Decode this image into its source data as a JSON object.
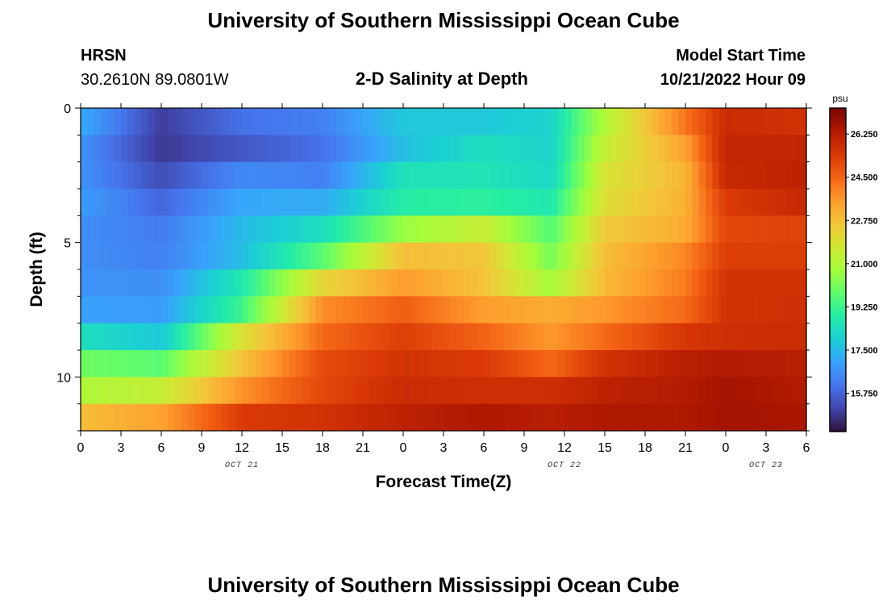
{
  "header": {
    "title": "University of Southern Mississippi Ocean Cube",
    "station_code": "HRSN",
    "location": "30.2610N  89.0801W",
    "subtitle": "2-D Salinity at Depth",
    "model_start_label": "Model Start Time",
    "model_start_value": "10/21/2022 Hour 09"
  },
  "footer": {
    "title": "University of Southern Mississippi Ocean Cube"
  },
  "chart_data": {
    "type": "heatmap",
    "title": "2-D Salinity at Depth",
    "xlabel": "Forecast Time(Z)",
    "ylabel": "Depth (ft)",
    "x_ticks": [
      "0",
      "3",
      "6",
      "9",
      "12",
      "15",
      "18",
      "21",
      "0",
      "3",
      "6",
      "9",
      "12",
      "15",
      "18",
      "21",
      "0",
      "3",
      "6"
    ],
    "x_hours": [
      0,
      3,
      6,
      9,
      12,
      15,
      18,
      21,
      24,
      27,
      30,
      33,
      36,
      39,
      42,
      45,
      48,
      51,
      54
    ],
    "xlim": [
      0,
      54
    ],
    "date_labels": [
      {
        "text": "OCT 21",
        "hour": 12
      },
      {
        "text": "OCT 22",
        "hour": 36
      },
      {
        "text": "OCT 23",
        "hour": 51
      }
    ],
    "y_ticks": [
      "0",
      "5",
      "10"
    ],
    "y_tick_values": [
      0,
      5,
      10
    ],
    "ylim": [
      0,
      12
    ],
    "depth_levels": [
      0.5,
      1.5,
      2.5,
      3.5,
      4.5,
      5.5,
      6.5,
      7.5,
      8.5,
      9.5,
      10.5,
      11.5
    ],
    "time_keys_hours": [
      0,
      6,
      12,
      18,
      24,
      30,
      35,
      39,
      45,
      48,
      54
    ],
    "salinity": [
      [
        17.2,
        15.0,
        16.0,
        16.3,
        17.8,
        17.8,
        18.1,
        21.0,
        24.2,
        25.8,
        25.6
      ],
      [
        16.7,
        14.9,
        15.5,
        16.0,
        17.6,
        18.4,
        18.1,
        21.4,
        23.4,
        26.0,
        26.0
      ],
      [
        16.7,
        15.3,
        16.5,
        16.3,
        18.5,
        18.6,
        18.2,
        21.8,
        23.0,
        25.9,
        26.1
      ],
      [
        16.9,
        15.8,
        17.1,
        17.2,
        18.9,
        19.0,
        18.7,
        22.0,
        23.1,
        25.4,
        25.9
      ],
      [
        16.6,
        16.2,
        17.5,
        18.4,
        20.6,
        21.5,
        19.6,
        22.5,
        23.2,
        25.1,
        25.2
      ],
      [
        16.6,
        16.3,
        17.6,
        19.7,
        22.8,
        22.6,
        20.1,
        22.8,
        23.9,
        25.3,
        25.3
      ],
      [
        16.7,
        16.6,
        18.7,
        22.2,
        23.5,
        22.7,
        20.8,
        22.9,
        24.1,
        25.6,
        25.6
      ],
      [
        17.0,
        16.9,
        19.3,
        23.8,
        24.6,
        23.5,
        23.2,
        23.6,
        24.4,
        25.6,
        25.7
      ],
      [
        18.4,
        17.8,
        21.9,
        24.4,
        25.3,
        24.5,
        23.6,
        24.4,
        25.5,
        25.7,
        25.8
      ],
      [
        20.0,
        19.7,
        22.7,
        25.0,
        25.6,
        25.4,
        24.4,
        25.6,
        26.2,
        26.3,
        26.2
      ],
      [
        21.0,
        21.4,
        23.7,
        25.1,
        25.8,
        25.7,
        25.7,
        26.1,
        26.3,
        26.6,
        26.3
      ],
      [
        22.8,
        23.4,
        25.4,
        25.6,
        26.1,
        26.4,
        26.2,
        26.4,
        26.4,
        26.6,
        26.5
      ]
    ],
    "colorbar": {
      "unit": "psu",
      "ticks": [
        "26.250",
        "24.500",
        "22.750",
        "21.000",
        "19.250",
        "17.500",
        "15.750"
      ],
      "tick_values": [
        26.25,
        24.5,
        22.75,
        21.0,
        19.25,
        17.5,
        15.75
      ],
      "range": [
        14.2,
        27.3
      ],
      "colors": [
        "#30123b",
        "#4145ab",
        "#4675ed",
        "#39a2fc",
        "#1bcfd4",
        "#24eca6",
        "#61fc6c",
        "#a4fc3b",
        "#d1e834",
        "#f3c63a",
        "#fe9b2d",
        "#f36315",
        "#d93806",
        "#b11901",
        "#7a0403"
      ]
    },
    "grid": false,
    "legend": "colorbar-right"
  }
}
